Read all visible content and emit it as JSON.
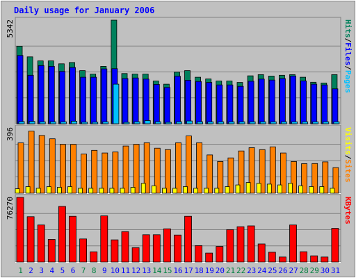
{
  "chart_data": {
    "type": "bar",
    "title": "Daily usage for January 2006",
    "colors": {
      "background": "#C0C0C0",
      "title": "#0000FF",
      "hits": "#00805C",
      "files": "#0000FF",
      "pages": "#00C0FF",
      "visits": "#FFFF00",
      "sites": "#FF8000",
      "kbytes": "#FF0000",
      "weekday_label": "#0000FF",
      "weekend_label": "#008040"
    },
    "days": [
      "1",
      "2",
      "3",
      "4",
      "5",
      "6",
      "7",
      "8",
      "9",
      "10",
      "11",
      "12",
      "13",
      "14",
      "15",
      "16",
      "17",
      "18",
      "19",
      "20",
      "21",
      "22",
      "23",
      "24",
      "25",
      "26",
      "27",
      "28",
      "29",
      "30",
      "31"
    ],
    "weekend_days": [
      "1",
      "7",
      "8",
      "14",
      "15",
      "21",
      "22",
      "28",
      "29"
    ],
    "panels": [
      {
        "id": "hits-files-pages",
        "max_label": "5342",
        "ymax": 5342,
        "legend": [
          {
            "text": "Pages",
            "color": "#00C0FF"
          },
          {
            "text": "Files",
            "color": "#0000FF"
          },
          {
            "text": "Hits",
            "color": "#00805C"
          }
        ],
        "series": [
          {
            "key": "hits",
            "values": [
              4000,
              3450,
              3240,
              3240,
              3090,
              3160,
              2740,
              2560,
              2960,
              5342,
              2590,
              2560,
              2560,
              2200,
              2040,
              2660,
              2740,
              2400,
              2310,
              2200,
              2200,
              2130,
              2470,
              2530,
              2460,
              2500,
              2530,
              2400,
              2140,
              2100,
              2530
            ]
          },
          {
            "key": "files",
            "values": [
              3520,
              2500,
              3000,
              2960,
              2700,
              2900,
              2400,
              2400,
              2830,
              2840,
              2330,
              2360,
              2300,
              2030,
              1870,
              2450,
              2240,
              2180,
              2130,
              2000,
              2000,
              1930,
              2190,
              2300,
              2250,
              2330,
              2460,
              2210,
              2040,
              2000,
              1800
            ]
          },
          {
            "key": "pages",
            "values": [
              110,
              120,
              100,
              100,
              100,
              130,
              80,
              80,
              100,
              2040,
              70,
              100,
              160,
              100,
              70,
              100,
              140,
              100,
              100,
              100,
              100,
              100,
              100,
              100,
              100,
              100,
              100,
              100,
              100,
              100,
              100
            ]
          }
        ]
      },
      {
        "id": "sites-visits",
        "max_label": "396",
        "ymax": 396,
        "legend": [
          {
            "text": "Sites",
            "color": "#FF8000"
          },
          {
            "text": "Visits",
            "color": "#FFFF00"
          }
        ],
        "series": [
          {
            "key": "sites",
            "values": [
              305,
              376,
              350,
              330,
              296,
              296,
              237,
              260,
              244,
              250,
              286,
              296,
              306,
              273,
              264,
              306,
              347,
              306,
              232,
              192,
              214,
              256,
              276,
              264,
              281,
              244,
              192,
              179,
              180,
              190,
              155
            ]
          },
          {
            "key": "visits",
            "values": [
              27,
              40,
              30,
              40,
              36,
              40,
              30,
              30,
              30,
              30,
              30,
              36,
              60,
              45,
              30,
              30,
              40,
              30,
              30,
              30,
              40,
              50,
              65,
              60,
              55,
              50,
              60,
              45,
              40,
              40,
              30
            ]
          }
        ]
      },
      {
        "id": "kbytes",
        "max_label": "76270",
        "ymax": 76270,
        "legend": [
          {
            "text": "KBytes",
            "color": "#FF0000"
          }
        ],
        "series": [
          {
            "key": "kbytes",
            "values": [
              76270,
              53480,
              43720,
              26630,
              65610,
              53930,
              27210,
              12060,
              54420,
              26160,
              35820,
              16920,
              32140,
              32140,
              39210,
              31850,
              53930,
              19350,
              10600,
              18380,
              38230,
              41640,
              42630,
              21300,
              11570,
              5900,
              43720,
              12130,
              7280,
              5900,
              39710
            ]
          }
        ]
      }
    ]
  }
}
